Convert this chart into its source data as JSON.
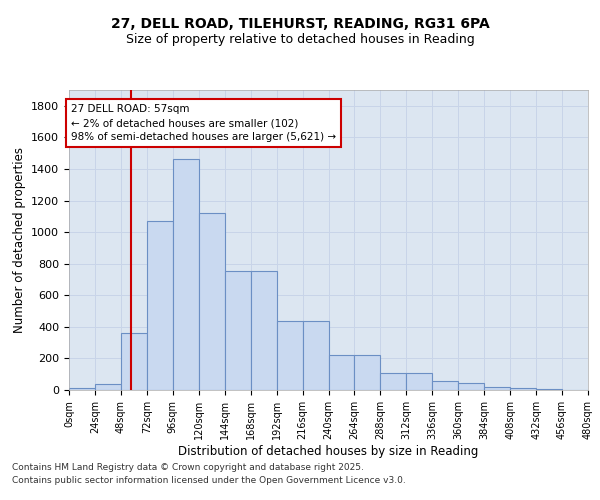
{
  "title1": "27, DELL ROAD, TILEHURST, READING, RG31 6PA",
  "title2": "Size of property relative to detached houses in Reading",
  "xlabel": "Distribution of detached houses by size in Reading",
  "ylabel": "Number of detached properties",
  "bar_values": [
    10,
    35,
    360,
    1070,
    1460,
    1120,
    755,
    755,
    435,
    435,
    220,
    220,
    110,
    110,
    55,
    45,
    20,
    10,
    5,
    0,
    0
  ],
  "bin_edges": [
    0,
    24,
    48,
    72,
    96,
    120,
    144,
    168,
    192,
    216,
    240,
    264,
    288,
    312,
    336,
    360,
    384,
    408,
    432,
    456,
    480
  ],
  "bar_color": "#c9d9f0",
  "bar_edge_color": "#6b8fc4",
  "grid_color": "#c8d4e8",
  "bg_color": "#dce6f1",
  "property_size": 57,
  "annotation_text": "27 DELL ROAD: 57sqm\n← 2% of detached houses are smaller (102)\n98% of semi-detached houses are larger (5,621) →",
  "vline_color": "#cc0000",
  "annotation_box_edge_color": "#cc0000",
  "ylim": [
    0,
    1900
  ],
  "yticks": [
    0,
    200,
    400,
    600,
    800,
    1000,
    1200,
    1400,
    1600,
    1800
  ],
  "footnote1": "Contains HM Land Registry data © Crown copyright and database right 2025.",
  "footnote2": "Contains public sector information licensed under the Open Government Licence v3.0."
}
